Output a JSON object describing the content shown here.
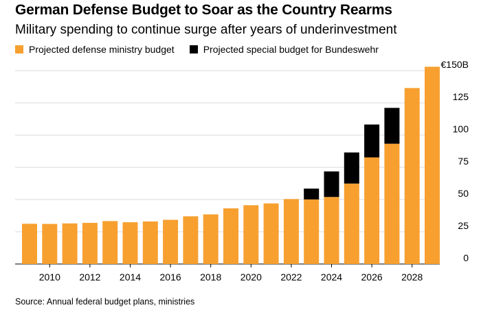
{
  "chart_data": {
    "type": "bar",
    "stacked": true,
    "title": "German Defense Budget to Soar as the Country Rearms",
    "subtitle": "Military spending to continue surge after years of underinvestment",
    "source": "Source: Annual federal budget plans, ministries",
    "categories": [
      "2009",
      "2010",
      "2011",
      "2012",
      "2013",
      "2014",
      "2015",
      "2016",
      "2017",
      "2018",
      "2019",
      "2020",
      "2021",
      "2022",
      "2023",
      "2024",
      "2025",
      "2026",
      "2027",
      "2028",
      "2029"
    ],
    "x_tick_labels": [
      "2010",
      "2012",
      "2014",
      "2016",
      "2018",
      "2020",
      "2022",
      "2024",
      "2026",
      "2028"
    ],
    "series": [
      {
        "name": "Projected defense ministry budget",
        "color": "#f7a030",
        "values": [
          31.2,
          31.1,
          31.5,
          31.9,
          33.3,
          32.4,
          33.0,
          34.3,
          37.0,
          38.5,
          43.2,
          45.6,
          47.0,
          50.4,
          50.1,
          52.0,
          62.4,
          82.7,
          93.3,
          136.5,
          153.0
        ]
      },
      {
        "name": "Projected special budget for Bundeswehr",
        "color": "#000000",
        "values": [
          0,
          0,
          0,
          0,
          0,
          0,
          0,
          0,
          0,
          0,
          0,
          0,
          0,
          0,
          8.4,
          19.8,
          24.1,
          25.5,
          27.8,
          0,
          0
        ]
      }
    ],
    "y_ticks": [
      "0",
      "25",
      "50",
      "75",
      "100",
      "125",
      "€150B"
    ],
    "y_tick_values": [
      0,
      25,
      50,
      75,
      100,
      125,
      150
    ],
    "ylim": [
      0,
      150
    ],
    "xlabel": "",
    "ylabel": ""
  }
}
